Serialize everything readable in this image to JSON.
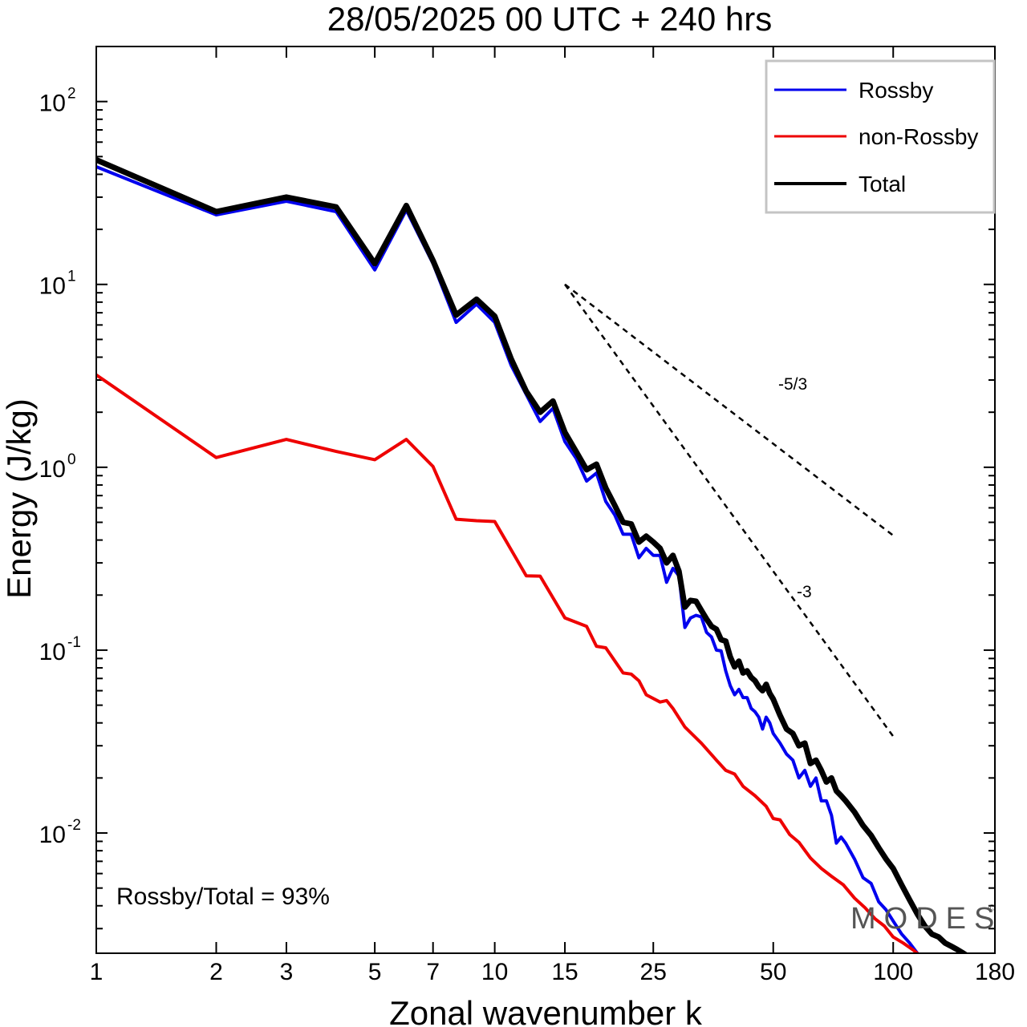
{
  "chart_data": {
    "type": "line",
    "title": "28/05/2025  00 UTC  + 240 hrs",
    "xlabel": "Zonal wavenumber k",
    "ylabel": "Energy (J/kg)",
    "x_scale": "log",
    "y_scale": "log",
    "xlim": [
      1,
      180
    ],
    "ylim": [
      0.0022,
      200
    ],
    "x_ticks": [
      1,
      2,
      3,
      5,
      7,
      10,
      15,
      25,
      50,
      100,
      180
    ],
    "x_tick_labels": [
      "1",
      "2",
      "3",
      "5",
      "7",
      "10",
      "15",
      "25",
      "50",
      "100",
      "180"
    ],
    "y_ticks": [
      {
        "value": 100,
        "base": "10",
        "exp": "2"
      },
      {
        "value": 10,
        "base": "10",
        "exp": "1"
      },
      {
        "value": 1,
        "base": "10",
        "exp": "0"
      },
      {
        "value": 0.1,
        "base": "10",
        "exp": "-1"
      },
      {
        "value": 0.01,
        "base": "10",
        "exp": "-2"
      }
    ],
    "grid": false,
    "legend_position": "top-right",
    "series": [
      {
        "name": "Rossby",
        "color": "#0000ee",
        "points": [
          [
            1,
            44
          ],
          [
            2,
            24
          ],
          [
            3,
            28.5
          ],
          [
            4,
            25
          ],
          [
            5,
            12
          ],
          [
            6,
            25.5
          ],
          [
            7,
            13
          ],
          [
            8,
            6.2
          ],
          [
            9,
            7.8
          ],
          [
            10,
            6.2
          ],
          [
            11,
            3.6
          ],
          [
            12,
            2.5
          ],
          [
            13,
            1.78
          ],
          [
            14,
            2.1
          ],
          [
            15,
            1.38
          ],
          [
            16,
            1.12
          ],
          [
            17,
            0.84
          ],
          [
            18,
            0.93
          ],
          [
            19,
            0.65
          ],
          [
            20,
            0.55
          ],
          [
            21,
            0.43
          ],
          [
            22,
            0.43
          ],
          [
            23,
            0.32
          ],
          [
            24,
            0.36
          ],
          [
            25,
            0.33
          ],
          [
            26,
            0.33
          ],
          [
            27,
            0.235
          ],
          [
            28,
            0.28
          ],
          [
            29,
            0.255
          ],
          [
            30,
            0.133
          ],
          [
            31,
            0.15
          ],
          [
            32,
            0.155
          ],
          [
            33,
            0.152
          ],
          [
            34,
            0.125
          ],
          [
            35,
            0.118
          ],
          [
            36,
            0.1
          ],
          [
            37,
            0.099
          ],
          [
            38,
            0.077
          ],
          [
            39,
            0.064
          ],
          [
            40,
            0.057
          ],
          [
            41,
            0.061
          ],
          [
            42,
            0.055
          ],
          [
            43,
            0.055
          ],
          [
            44,
            0.048
          ],
          [
            45,
            0.046
          ],
          [
            46,
            0.043
          ],
          [
            47,
            0.037
          ],
          [
            48,
            0.043
          ],
          [
            49,
            0.04
          ],
          [
            50,
            0.035
          ],
          [
            52,
            0.031
          ],
          [
            54,
            0.027
          ],
          [
            56,
            0.025
          ],
          [
            58,
            0.02
          ],
          [
            60,
            0.022
          ],
          [
            62,
            0.018
          ],
          [
            64,
            0.02
          ],
          [
            66,
            0.015
          ],
          [
            68,
            0.015
          ],
          [
            70,
            0.0125
          ],
          [
            72,
            0.0088
          ],
          [
            74,
            0.0095
          ],
          [
            76,
            0.0088
          ],
          [
            80,
            0.0072
          ],
          [
            84,
            0.0057
          ],
          [
            88,
            0.0053
          ],
          [
            92,
            0.0042
          ],
          [
            96,
            0.0038
          ],
          [
            100,
            0.0033
          ],
          [
            105,
            0.0028
          ],
          [
            110,
            0.0025
          ],
          [
            115,
            0.0022
          ]
        ]
      },
      {
        "name": "non-Rossby",
        "color": "#ee0000",
        "points": [
          [
            1,
            3.2
          ],
          [
            2,
            1.13
          ],
          [
            3,
            1.42
          ],
          [
            4,
            1.22
          ],
          [
            5,
            1.1
          ],
          [
            6,
            1.42
          ],
          [
            7,
            1.01
          ],
          [
            8,
            0.52
          ],
          [
            9,
            0.51
          ],
          [
            10,
            0.505
          ],
          [
            12,
            0.255
          ],
          [
            13,
            0.254
          ],
          [
            15,
            0.15
          ],
          [
            17,
            0.135
          ],
          [
            18,
            0.105
          ],
          [
            19,
            0.103
          ],
          [
            21,
            0.075
          ],
          [
            22,
            0.074
          ],
          [
            23,
            0.068
          ],
          [
            24,
            0.057
          ],
          [
            26,
            0.052
          ],
          [
            27,
            0.053
          ],
          [
            28,
            0.048
          ],
          [
            30,
            0.038
          ],
          [
            33,
            0.031
          ],
          [
            36,
            0.025
          ],
          [
            38,
            0.022
          ],
          [
            40,
            0.021
          ],
          [
            42,
            0.018
          ],
          [
            45,
            0.016
          ],
          [
            48,
            0.014
          ],
          [
            50,
            0.012
          ],
          [
            52,
            0.0118
          ],
          [
            55,
            0.0098
          ],
          [
            58,
            0.0089
          ],
          [
            62,
            0.0073
          ],
          [
            66,
            0.0064
          ],
          [
            70,
            0.0058
          ],
          [
            75,
            0.0052
          ],
          [
            80,
            0.0044
          ],
          [
            85,
            0.0039
          ],
          [
            90,
            0.0034
          ],
          [
            95,
            0.0031
          ],
          [
            100,
            0.0027
          ],
          [
            106,
            0.0025
          ],
          [
            112,
            0.0023
          ],
          [
            118,
            0.0021
          ]
        ]
      },
      {
        "name": "Total",
        "color": "#000000",
        "points": [
          [
            1,
            48
          ],
          [
            2,
            25
          ],
          [
            3,
            30
          ],
          [
            4,
            26.5
          ],
          [
            5,
            13
          ],
          [
            6,
            27
          ],
          [
            7,
            13.5
          ],
          [
            8,
            6.8
          ],
          [
            9,
            8.3
          ],
          [
            10,
            6.7
          ],
          [
            11,
            3.9
          ],
          [
            12,
            2.6
          ],
          [
            13,
            2
          ],
          [
            14,
            2.3
          ],
          [
            15,
            1.55
          ],
          [
            16,
            1.22
          ],
          [
            17,
            0.97
          ],
          [
            18,
            1.04
          ],
          [
            19,
            0.77
          ],
          [
            20,
            0.62
          ],
          [
            21,
            0.5
          ],
          [
            22,
            0.49
          ],
          [
            23,
            0.39
          ],
          [
            24,
            0.42
          ],
          [
            25,
            0.39
          ],
          [
            26,
            0.36
          ],
          [
            27,
            0.3
          ],
          [
            28,
            0.33
          ],
          [
            29,
            0.27
          ],
          [
            30,
            0.172
          ],
          [
            31,
            0.187
          ],
          [
            32,
            0.185
          ],
          [
            33,
            0.165
          ],
          [
            34,
            0.148
          ],
          [
            35,
            0.135
          ],
          [
            36,
            0.13
          ],
          [
            37,
            0.114
          ],
          [
            38,
            0.112
          ],
          [
            39,
            0.092
          ],
          [
            40,
            0.081
          ],
          [
            41,
            0.087
          ],
          [
            42,
            0.075
          ],
          [
            43,
            0.077
          ],
          [
            44,
            0.071
          ],
          [
            45,
            0.068
          ],
          [
            46,
            0.063
          ],
          [
            47,
            0.06
          ],
          [
            48,
            0.065
          ],
          [
            49,
            0.058
          ],
          [
            50,
            0.054
          ],
          [
            52,
            0.044
          ],
          [
            54,
            0.037
          ],
          [
            56,
            0.035
          ],
          [
            58,
            0.03
          ],
          [
            60,
            0.031
          ],
          [
            62,
            0.024
          ],
          [
            64,
            0.025
          ],
          [
            66,
            0.022
          ],
          [
            68,
            0.019
          ],
          [
            70,
            0.02
          ],
          [
            72,
            0.017
          ],
          [
            74,
            0.016
          ],
          [
            76,
            0.015
          ],
          [
            80,
            0.013
          ],
          [
            84,
            0.011
          ],
          [
            88,
            0.0097
          ],
          [
            92,
            0.0083
          ],
          [
            96,
            0.0072
          ],
          [
            100,
            0.0064
          ],
          [
            105,
            0.0052
          ],
          [
            110,
            0.0043
          ],
          [
            115,
            0.0036
          ],
          [
            120,
            0.0031
          ],
          [
            125,
            0.0028
          ],
          [
            130,
            0.0027
          ],
          [
            135,
            0.0025
          ],
          [
            140,
            0.0024
          ],
          [
            145,
            0.0023
          ],
          [
            150,
            0.0022
          ],
          [
            155,
            0.0021
          ]
        ]
      }
    ],
    "reference_slopes": [
      {
        "label": "-5/3",
        "k_start": 15,
        "k_end": 100,
        "E_start": 10
      },
      {
        "label": "-3",
        "k_start": 15,
        "k_end": 100,
        "E_start": 10
      }
    ],
    "annotation": "Rossby/Total = 93%",
    "watermark": "MODES"
  }
}
